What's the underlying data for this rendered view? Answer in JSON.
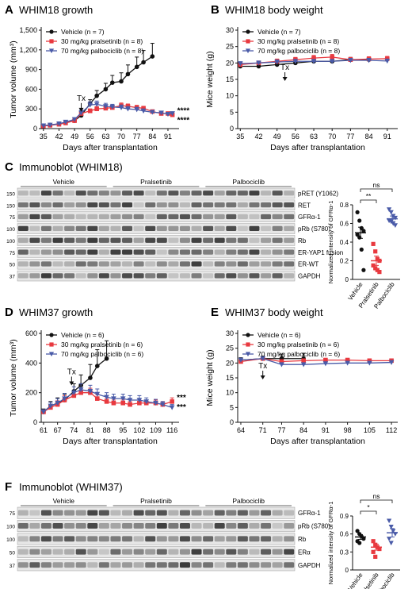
{
  "panels": {
    "A": {
      "letter": "A",
      "title": "WHIM18 growth"
    },
    "B": {
      "letter": "B",
      "title": "WHIM18 body weight"
    },
    "C": {
      "letter": "C",
      "title": "Immunoblot (WHIM18)"
    },
    "D": {
      "letter": "D",
      "title": "WHIM37 growth"
    },
    "E": {
      "letter": "E",
      "title": "WHIM37 body weight"
    },
    "F": {
      "letter": "F",
      "title": "Immunoblot (WHIM37)"
    }
  },
  "colors": {
    "vehicle": "#111111",
    "pralsetinib": "#e8393f",
    "palbociclib": "#4a5ba8"
  },
  "tx_label": "Tx",
  "chart_data": [
    {
      "id": "A",
      "type": "line",
      "xlabel": "Days after transplantation",
      "ylabel": "Tumor volume (mm³)",
      "xticks": [
        35,
        42,
        49,
        56,
        63,
        70,
        77,
        84,
        91
      ],
      "yticks": [
        0,
        300,
        600,
        900,
        1200,
        1500
      ],
      "xlim": [
        34,
        96
      ],
      "ylim": [
        0,
        1500
      ],
      "tx_x": 52,
      "significance": [
        "****",
        "****"
      ],
      "legend": [
        "Vehicle (n = 7)",
        "30 mg/kg pralsetinib (n = 8)",
        "70 mg/kg palbociclib (n = 8)"
      ],
      "series": [
        {
          "name": "Vehicle (n = 7)",
          "color": "#111111",
          "marker": "circle",
          "x": [
            35,
            38,
            42,
            45,
            49,
            52,
            56,
            59,
            63,
            66,
            70,
            73,
            77,
            80,
            84
          ],
          "y": [
            40,
            55,
            70,
            90,
            120,
            200,
            380,
            500,
            600,
            700,
            720,
            830,
            940,
            1010,
            1100
          ],
          "err": [
            10,
            12,
            15,
            20,
            25,
            40,
            60,
            80,
            90,
            110,
            130,
            140,
            150,
            180,
            200
          ]
        },
        {
          "name": "30 mg/kg pralsetinib (n = 8)",
          "color": "#e8393f",
          "marker": "square",
          "x": [
            35,
            38,
            42,
            45,
            49,
            52,
            56,
            59,
            63,
            66,
            70,
            73,
            77,
            80,
            84,
            88,
            91,
            93
          ],
          "y": [
            40,
            50,
            65,
            85,
            120,
            230,
            270,
            300,
            310,
            320,
            350,
            340,
            320,
            310,
            260,
            230,
            230,
            210
          ],
          "err": [
            8,
            10,
            12,
            15,
            20,
            30,
            30,
            35,
            35,
            35,
            40,
            35,
            35,
            30,
            25,
            25,
            20,
            20
          ]
        },
        {
          "name": "70 mg/kg palbociclib (n = 8)",
          "color": "#4a5ba8",
          "marker": "triangle",
          "x": [
            35,
            38,
            42,
            45,
            49,
            52,
            56,
            59,
            63,
            66,
            70,
            73,
            77,
            80,
            84,
            88,
            91,
            93
          ],
          "y": [
            45,
            55,
            75,
            100,
            140,
            240,
            360,
            370,
            340,
            330,
            320,
            300,
            290,
            270,
            250,
            240,
            220,
            230
          ],
          "err": [
            8,
            10,
            12,
            15,
            25,
            40,
            50,
            50,
            45,
            40,
            40,
            35,
            35,
            30,
            25,
            25,
            20,
            20
          ]
        }
      ]
    },
    {
      "id": "B",
      "type": "line",
      "xlabel": "Days after transplantation",
      "ylabel": "Mice weight (g)",
      "xticks": [
        35,
        42,
        49,
        56,
        63,
        70,
        77,
        84,
        91
      ],
      "yticks": [
        0,
        5,
        10,
        15,
        20,
        25,
        30
      ],
      "xlim": [
        34,
        95
      ],
      "ylim": [
        0,
        30
      ],
      "tx_x": 52,
      "legend": [
        "Vehicle (n = 7)",
        "30 mg/kg pralsetinib (n = 8)",
        "70 mg/kg palbociclib (n = 8)"
      ],
      "series": [
        {
          "name": "Vehicle (n = 7)",
          "color": "#111111",
          "marker": "circle",
          "x": [
            35,
            42,
            49,
            56,
            63,
            70,
            77,
            84
          ],
          "y": [
            19,
            19,
            19.5,
            20,
            20.5,
            20.5,
            21,
            21
          ],
          "err": [
            0.6,
            0.6,
            0.6,
            0.7,
            0.7,
            0.7,
            0.7,
            0.7
          ]
        },
        {
          "name": "30 mg/kg pralsetinib (n = 8)",
          "color": "#e8393f",
          "marker": "square",
          "x": [
            35,
            42,
            49,
            56,
            63,
            70,
            77,
            84,
            91
          ],
          "y": [
            19.5,
            20,
            20.5,
            21,
            21.5,
            21.8,
            21,
            21.2,
            21.3
          ],
          "err": [
            0.6,
            0.6,
            0.7,
            0.7,
            0.8,
            0.8,
            0.7,
            0.7,
            0.7
          ]
        },
        {
          "name": "70 mg/kg palbociclib (n = 8)",
          "color": "#4a5ba8",
          "marker": "triangle",
          "x": [
            35,
            42,
            49,
            56,
            63,
            70,
            77,
            84,
            91
          ],
          "y": [
            19.8,
            20,
            20.3,
            20.5,
            20.5,
            20.5,
            20.8,
            20.8,
            20.6
          ],
          "err": [
            0.6,
            0.6,
            0.6,
            0.6,
            0.6,
            0.6,
            0.6,
            0.6,
            0.6
          ]
        }
      ]
    },
    {
      "id": "D",
      "type": "line",
      "xlabel": "Days after transplantation",
      "ylabel": "Tumor volume (mm³)",
      "xticks": [
        61,
        67,
        74,
        81,
        88,
        95,
        102,
        109,
        116
      ],
      "yticks": [
        0,
        200,
        400,
        600
      ],
      "xlim": [
        60,
        119
      ],
      "ylim": [
        0,
        600
      ],
      "tx_x": 73,
      "significance": [
        "***",
        "***"
      ],
      "legend": [
        "Vehicle (n = 6)",
        "30 mg/kg pralsetinib (n = 6)",
        "70 mg/kg palbociclib (n = 6)"
      ],
      "series": [
        {
          "name": "Vehicle (n = 6)",
          "color": "#111111",
          "marker": "circle",
          "x": [
            61,
            64,
            67,
            70,
            74,
            77,
            81,
            84,
            88
          ],
          "y": [
            70,
            110,
            130,
            150,
            210,
            250,
            300,
            380,
            430
          ],
          "err": [
            20,
            30,
            35,
            40,
            50,
            70,
            90,
            110,
            120
          ]
        },
        {
          "name": "30 mg/kg pralsetinib (n = 6)",
          "color": "#e8393f",
          "marker": "square",
          "x": [
            61,
            64,
            67,
            70,
            74,
            77,
            81,
            84,
            88,
            91,
            95,
            98,
            102,
            105,
            109,
            112,
            116
          ],
          "y": [
            70,
            100,
            120,
            150,
            180,
            200,
            200,
            160,
            140,
            130,
            130,
            120,
            130,
            130,
            130,
            120,
            140
          ],
          "err": [
            15,
            20,
            25,
            30,
            30,
            30,
            30,
            25,
            20,
            20,
            20,
            20,
            20,
            20,
            20,
            20,
            25
          ]
        },
        {
          "name": "70 mg/kg palbociclib (n = 6)",
          "color": "#4a5ba8",
          "marker": "triangle",
          "x": [
            61,
            64,
            67,
            70,
            74,
            77,
            81,
            84,
            88,
            91,
            95,
            98,
            102,
            105,
            109,
            112,
            116
          ],
          "y": [
            70,
            110,
            130,
            160,
            200,
            220,
            210,
            190,
            170,
            160,
            160,
            150,
            150,
            140,
            130,
            120,
            100
          ],
          "err": [
            15,
            25,
            30,
            35,
            40,
            40,
            40,
            35,
            30,
            30,
            30,
            30,
            30,
            25,
            25,
            20,
            20
          ]
        }
      ]
    },
    {
      "id": "E",
      "type": "line",
      "xlabel": "Days after transplantation",
      "ylabel": "Mice weight (g)",
      "xticks": [
        64,
        71,
        77,
        84,
        91,
        98,
        105,
        112
      ],
      "yticks": [
        0,
        5,
        10,
        15,
        20,
        25,
        30
      ],
      "xlim": [
        63,
        114
      ],
      "ylim": [
        0,
        30
      ],
      "tx_x": 71,
      "legend": [
        "Vehicle (n = 6)",
        "30 mg/kg pralsetinib (n = 6)",
        "70 mg/kg palbociclib (n = 6)"
      ],
      "series": [
        {
          "name": "Vehicle (n = 6)",
          "color": "#111111",
          "marker": "circle",
          "x": [
            64,
            71,
            77,
            84
          ],
          "y": [
            21,
            21.5,
            21.5,
            21.5
          ],
          "err": [
            0.8,
            0.8,
            1.5,
            1.8
          ]
        },
        {
          "name": "30 mg/kg pralsetinib (n = 6)",
          "color": "#e8393f",
          "marker": "square",
          "x": [
            64,
            71,
            77,
            84,
            91,
            98,
            105,
            112
          ],
          "y": [
            20.5,
            21.5,
            20.5,
            20.8,
            21,
            21,
            20.8,
            20.8
          ],
          "err": [
            0.6,
            0.6,
            0.6,
            0.6,
            0.6,
            0.6,
            0.6,
            0.6
          ]
        },
        {
          "name": "70 mg/kg palbociclib (n = 6)",
          "color": "#4a5ba8",
          "marker": "triangle",
          "x": [
            64,
            71,
            77,
            84,
            91,
            98,
            105,
            112
          ],
          "y": [
            21,
            21.5,
            19.5,
            19.5,
            19.8,
            20,
            20,
            20.2
          ],
          "err": [
            0.6,
            0.6,
            0.6,
            0.6,
            0.6,
            0.6,
            0.6,
            0.6
          ]
        }
      ]
    },
    {
      "id": "C_scatter",
      "type": "scatter",
      "ylabel": "Normalized intensity of GFRα-1",
      "categories": [
        "Vehicle",
        "Pralsetinib",
        "Palbociclib"
      ],
      "yticks": [
        0,
        0.2,
        0.4,
        0.6,
        0.8
      ],
      "ylim": [
        0,
        0.8
      ],
      "significance": [
        {
          "pair": [
            0,
            1
          ],
          "label": "**"
        },
        {
          "pair": [
            0,
            2
          ],
          "label": "ns"
        }
      ],
      "groups": [
        {
          "name": "Vehicle",
          "color": "#111111",
          "marker": "circle",
          "mean": 0.5,
          "sem": 0.06,
          "values": [
            0.72,
            0.63,
            0.55,
            0.52,
            0.48,
            0.45,
            0.32,
            0.1
          ]
        },
        {
          "name": "Pralsetinib",
          "color": "#e8393f",
          "marker": "square",
          "mean": 0.2,
          "sem": 0.05,
          "values": [
            0.38,
            0.3,
            0.22,
            0.2,
            0.15,
            0.12,
            0.1,
            0.08
          ]
        },
        {
          "name": "Palbociclib",
          "color": "#4a5ba8",
          "marker": "triangle",
          "mean": 0.65,
          "sem": 0.03,
          "values": [
            0.75,
            0.72,
            0.68,
            0.66,
            0.63,
            0.62,
            0.6,
            0.58
          ]
        }
      ]
    },
    {
      "id": "F_scatter",
      "type": "scatter",
      "ylabel": "Normalized intensity of GFRα-1",
      "categories": [
        "Vehicle",
        "Pralsetinib",
        "Palbociclib"
      ],
      "yticks": [
        0,
        0.3,
        0.6,
        0.9
      ],
      "ylim": [
        0,
        0.9
      ],
      "significance": [
        {
          "pair": [
            0,
            1
          ],
          "label": "*"
        },
        {
          "pair": [
            0,
            2
          ],
          "label": "ns"
        }
      ],
      "groups": [
        {
          "name": "Vehicle",
          "color": "#111111",
          "marker": "circle",
          "mean": 0.55,
          "sem": 0.04,
          "values": [
            0.65,
            0.6,
            0.56,
            0.52,
            0.48,
            0.45
          ]
        },
        {
          "name": "Pralsetinib",
          "color": "#e8393f",
          "marker": "square",
          "mean": 0.38,
          "sem": 0.05,
          "values": [
            0.48,
            0.42,
            0.38,
            0.35,
            0.3,
            0.22
          ]
        },
        {
          "name": "Palbociclib",
          "color": "#4a5ba8",
          "marker": "triangle",
          "mean": 0.62,
          "sem": 0.07,
          "values": [
            0.82,
            0.72,
            0.65,
            0.6,
            0.52,
            0.45
          ]
        }
      ]
    }
  ],
  "blots": {
    "C": {
      "groups": [
        "Vehicle",
        "Pralsetinib",
        "Palbociclib"
      ],
      "bands": [
        {
          "label": "pRET (Y1062)",
          "marker": "150"
        },
        {
          "label": "RET",
          "marker": "150"
        },
        {
          "label": "GFRα-1",
          "marker": "75"
        },
        {
          "label": "pRb (S780)",
          "marker": "100"
        },
        {
          "label": "Rb",
          "marker": "100"
        },
        {
          "label": "ER-YAP1 fusion",
          "marker": "75"
        },
        {
          "label": "ER-WT",
          "marker": "50"
        },
        {
          "label": "GAPDH",
          "marker": "37"
        }
      ]
    },
    "F": {
      "groups": [
        "Vehicle",
        "Pralsetinib",
        "Palbociclib"
      ],
      "bands": [
        {
          "label": "GFRα-1",
          "marker": "75"
        },
        {
          "label": "pRb (S780)",
          "marker": "100"
        },
        {
          "label": "Rb",
          "marker": "100"
        },
        {
          "label": "ERα",
          "marker": "50"
        },
        {
          "label": "GAPDH",
          "marker": "37"
        }
      ]
    }
  }
}
